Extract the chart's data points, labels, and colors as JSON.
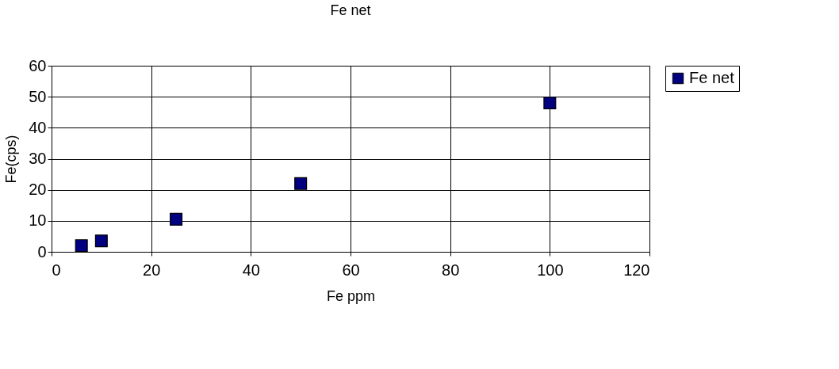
{
  "chart_data": {
    "type": "scatter",
    "title": "Fe net",
    "xlabel": "Fe ppm",
    "ylabel": "Fe(cps)",
    "x": [
      6,
      10,
      25,
      50,
      100
    ],
    "series": [
      {
        "name": "Fe net",
        "color": "#000080",
        "values": [
          2,
          3.5,
          10.5,
          22,
          48
        ]
      }
    ],
    "xlim": [
      0,
      120
    ],
    "xticks": [
      0,
      20,
      40,
      60,
      80,
      100,
      120
    ],
    "ylim": [
      0,
      60
    ],
    "yticks": [
      0,
      10,
      20,
      30,
      40,
      50,
      60
    ],
    "grid": true,
    "legend": "right",
    "marker": "square"
  }
}
